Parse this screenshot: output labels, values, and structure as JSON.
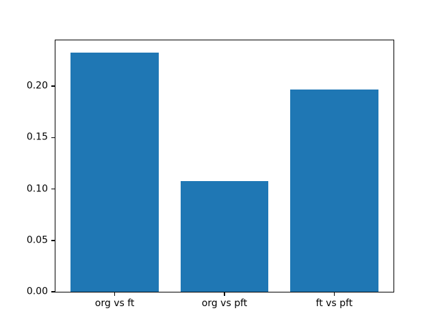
{
  "figure": {
    "background": "#ffffff"
  },
  "chart_data": {
    "type": "bar",
    "categories": [
      "org vs ft",
      "org vs pft",
      "ft vs pft"
    ],
    "values": [
      0.233,
      0.108,
      0.197
    ],
    "title": "",
    "xlabel": "",
    "ylabel": "",
    "xlim": [
      -0.54,
      2.54
    ],
    "ylim": [
      0,
      0.2447
    ],
    "yticks": [
      0,
      0.05,
      0.1,
      0.15,
      0.2
    ],
    "ytick_labels": [
      "0.00",
      "0.05",
      "0.10",
      "0.15",
      "0.20"
    ],
    "bar_width": 0.8,
    "bar_color": "#1f77b4",
    "axis_color": "#000000",
    "grid": false,
    "legend": null
  }
}
